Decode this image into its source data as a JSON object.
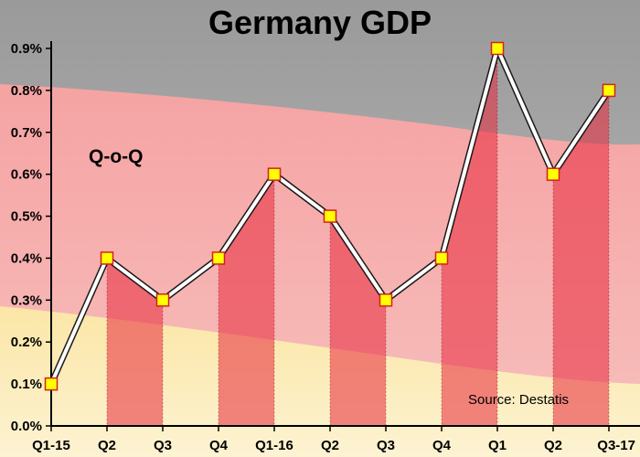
{
  "chart_data": {
    "type": "area",
    "title": "Germany GDP",
    "annotation": "Q-o-Q",
    "source": "Source: Destatis",
    "xlabel": "",
    "ylabel": "",
    "categories": [
      "Q1-15",
      "Q2",
      "Q3",
      "Q4",
      "Q1-16",
      "Q2",
      "Q3",
      "Q4",
      "Q1",
      "Q2",
      "Q3-17"
    ],
    "values": [
      0.1,
      0.4,
      0.3,
      0.4,
      0.6,
      0.5,
      0.3,
      0.4,
      0.9,
      0.6,
      0.8
    ],
    "ylim": [
      0,
      0.9
    ],
    "yticks": [
      "0.0%",
      "0.1%",
      "0.2%",
      "0.3%",
      "0.4%",
      "0.5%",
      "0.6%",
      "0.7%",
      "0.8%",
      "0.9%"
    ],
    "grid": false,
    "background": "German flag (black, red, gold) faded",
    "colors": {
      "flag_black": "#1a1a1a",
      "flag_red": "#dd0000",
      "flag_gold": "#ffce00",
      "area_fill": "#e8283c",
      "line": "#ffffff",
      "line_outline": "#1a1a1a",
      "marker_fill": "#ffff00",
      "marker_stroke": "#d42020"
    }
  }
}
